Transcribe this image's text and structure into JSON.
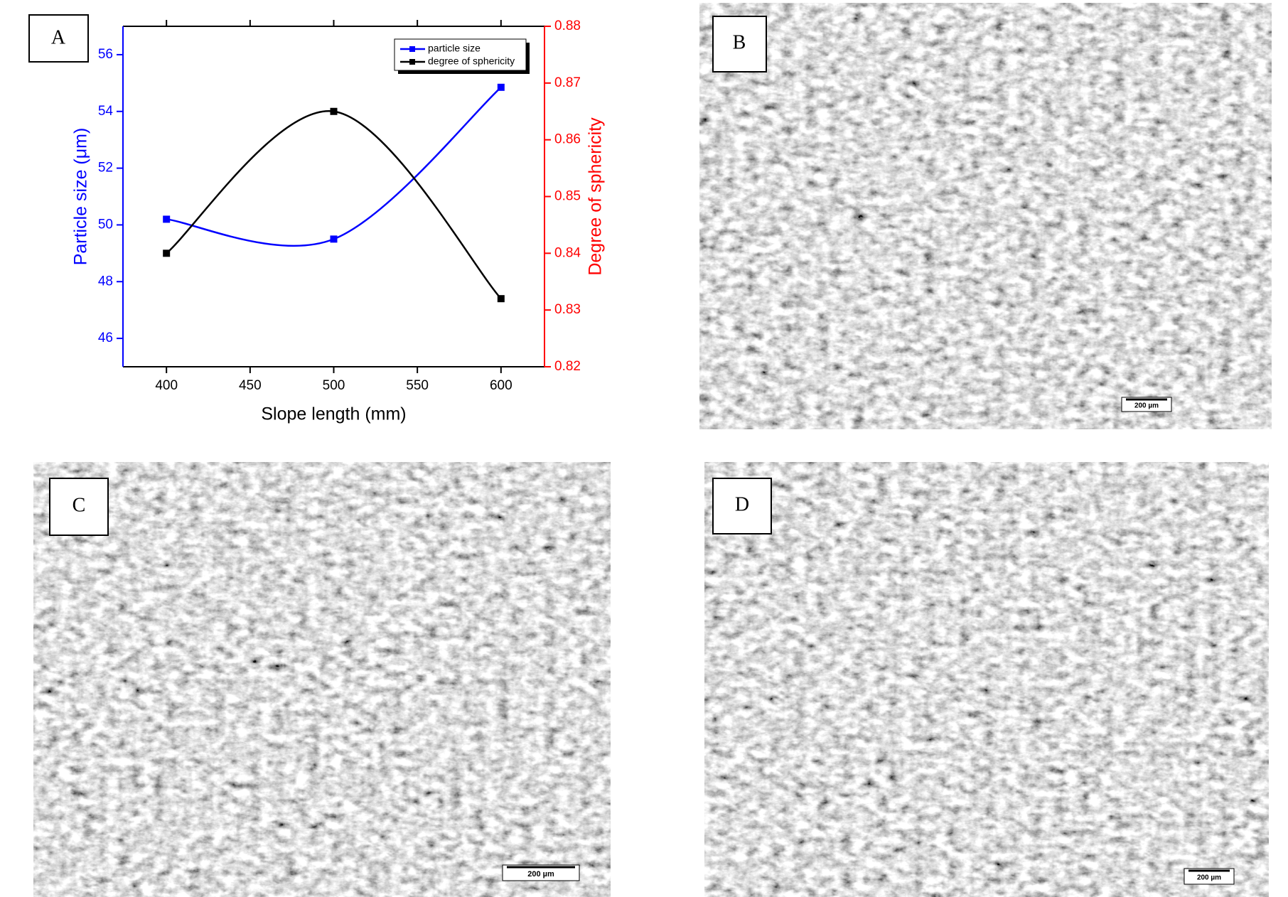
{
  "chart_data": {
    "type": "line",
    "x_label": "Slope length (mm)",
    "y_label": "Particle size (μm)",
    "y2_label": "Degree of sphericity",
    "x": [
      400,
      500,
      600
    ],
    "series": [
      {
        "name": "particle size",
        "color": "#0000ff",
        "values": [
          50.2,
          49.5,
          54.85
        ]
      },
      {
        "name": "degree of sphericity",
        "color": "#000000",
        "axis": "y2",
        "values": [
          0.84,
          0.865,
          0.832
        ]
      }
    ],
    "xlim": [
      374,
      626
    ],
    "xticks": [
      400,
      450,
      500,
      550,
      600
    ],
    "ylim": [
      45,
      57
    ],
    "yticks": [
      46,
      48,
      50,
      52,
      54,
      56
    ],
    "y2lim": [
      0.82,
      0.88
    ],
    "y2ticks": [
      0.82,
      0.83,
      0.84,
      0.85,
      0.86,
      0.87,
      0.88
    ],
    "y_axis_color": "#0000ff",
    "y2_axis_color": "#ff0000",
    "legend": "upper right"
  },
  "panels": [
    {
      "label": "A"
    },
    {
      "label": "B",
      "scale_bar": "200 µm"
    },
    {
      "label": "C",
      "scale_bar": "200 µm"
    },
    {
      "label": "D",
      "scale_bar": "200 µm"
    }
  ]
}
